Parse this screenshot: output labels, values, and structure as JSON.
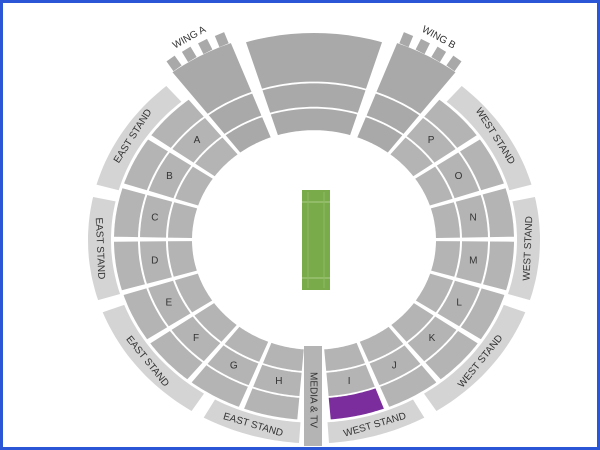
{
  "wings": [
    "WING A",
    "WING B"
  ],
  "stands": {
    "east": [
      "EAST STAND",
      "EAST STAND",
      "EAST STAND",
      "EAST STAND"
    ],
    "west": [
      "WEST STAND",
      "WEST STAND",
      "WEST STAND",
      "WEST STAND"
    ]
  },
  "media": "MEDIA & TV",
  "blocks": [
    "A",
    "B",
    "C",
    "D",
    "E",
    "F",
    "G",
    "H",
    "I",
    "J",
    "K",
    "L",
    "M",
    "N",
    "O",
    "P"
  ]
}
